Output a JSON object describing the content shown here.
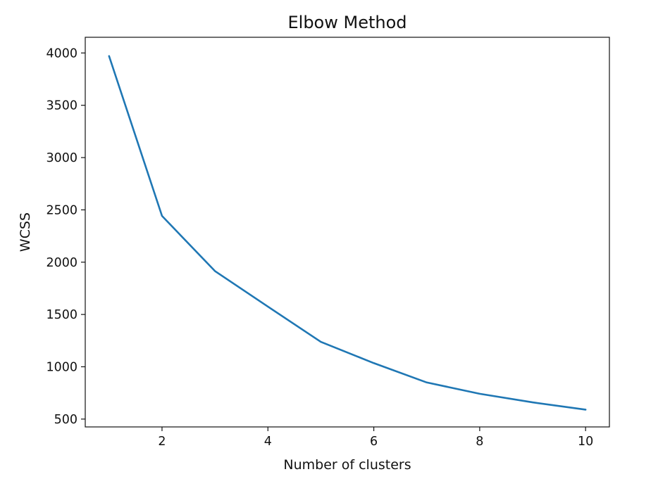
{
  "chart_data": {
    "type": "line",
    "title": "Elbow Method",
    "xlabel": "Number of clusters",
    "ylabel": "WCSS",
    "xlim": [
      0.55,
      10.45
    ],
    "ylim": [
      425,
      4150
    ],
    "xticks": [
      2,
      4,
      6,
      8,
      10
    ],
    "yticks": [
      500,
      1000,
      1500,
      2000,
      2500,
      3000,
      3500,
      4000
    ],
    "grid": false,
    "series": [
      {
        "color": "#1f77b4",
        "x": [
          1,
          2,
          3,
          4,
          5,
          6,
          7,
          8,
          9,
          10
        ],
        "values": [
          3970,
          2442,
          1915,
          1575,
          1238,
          1035,
          850,
          742,
          660,
          590
        ]
      }
    ]
  }
}
